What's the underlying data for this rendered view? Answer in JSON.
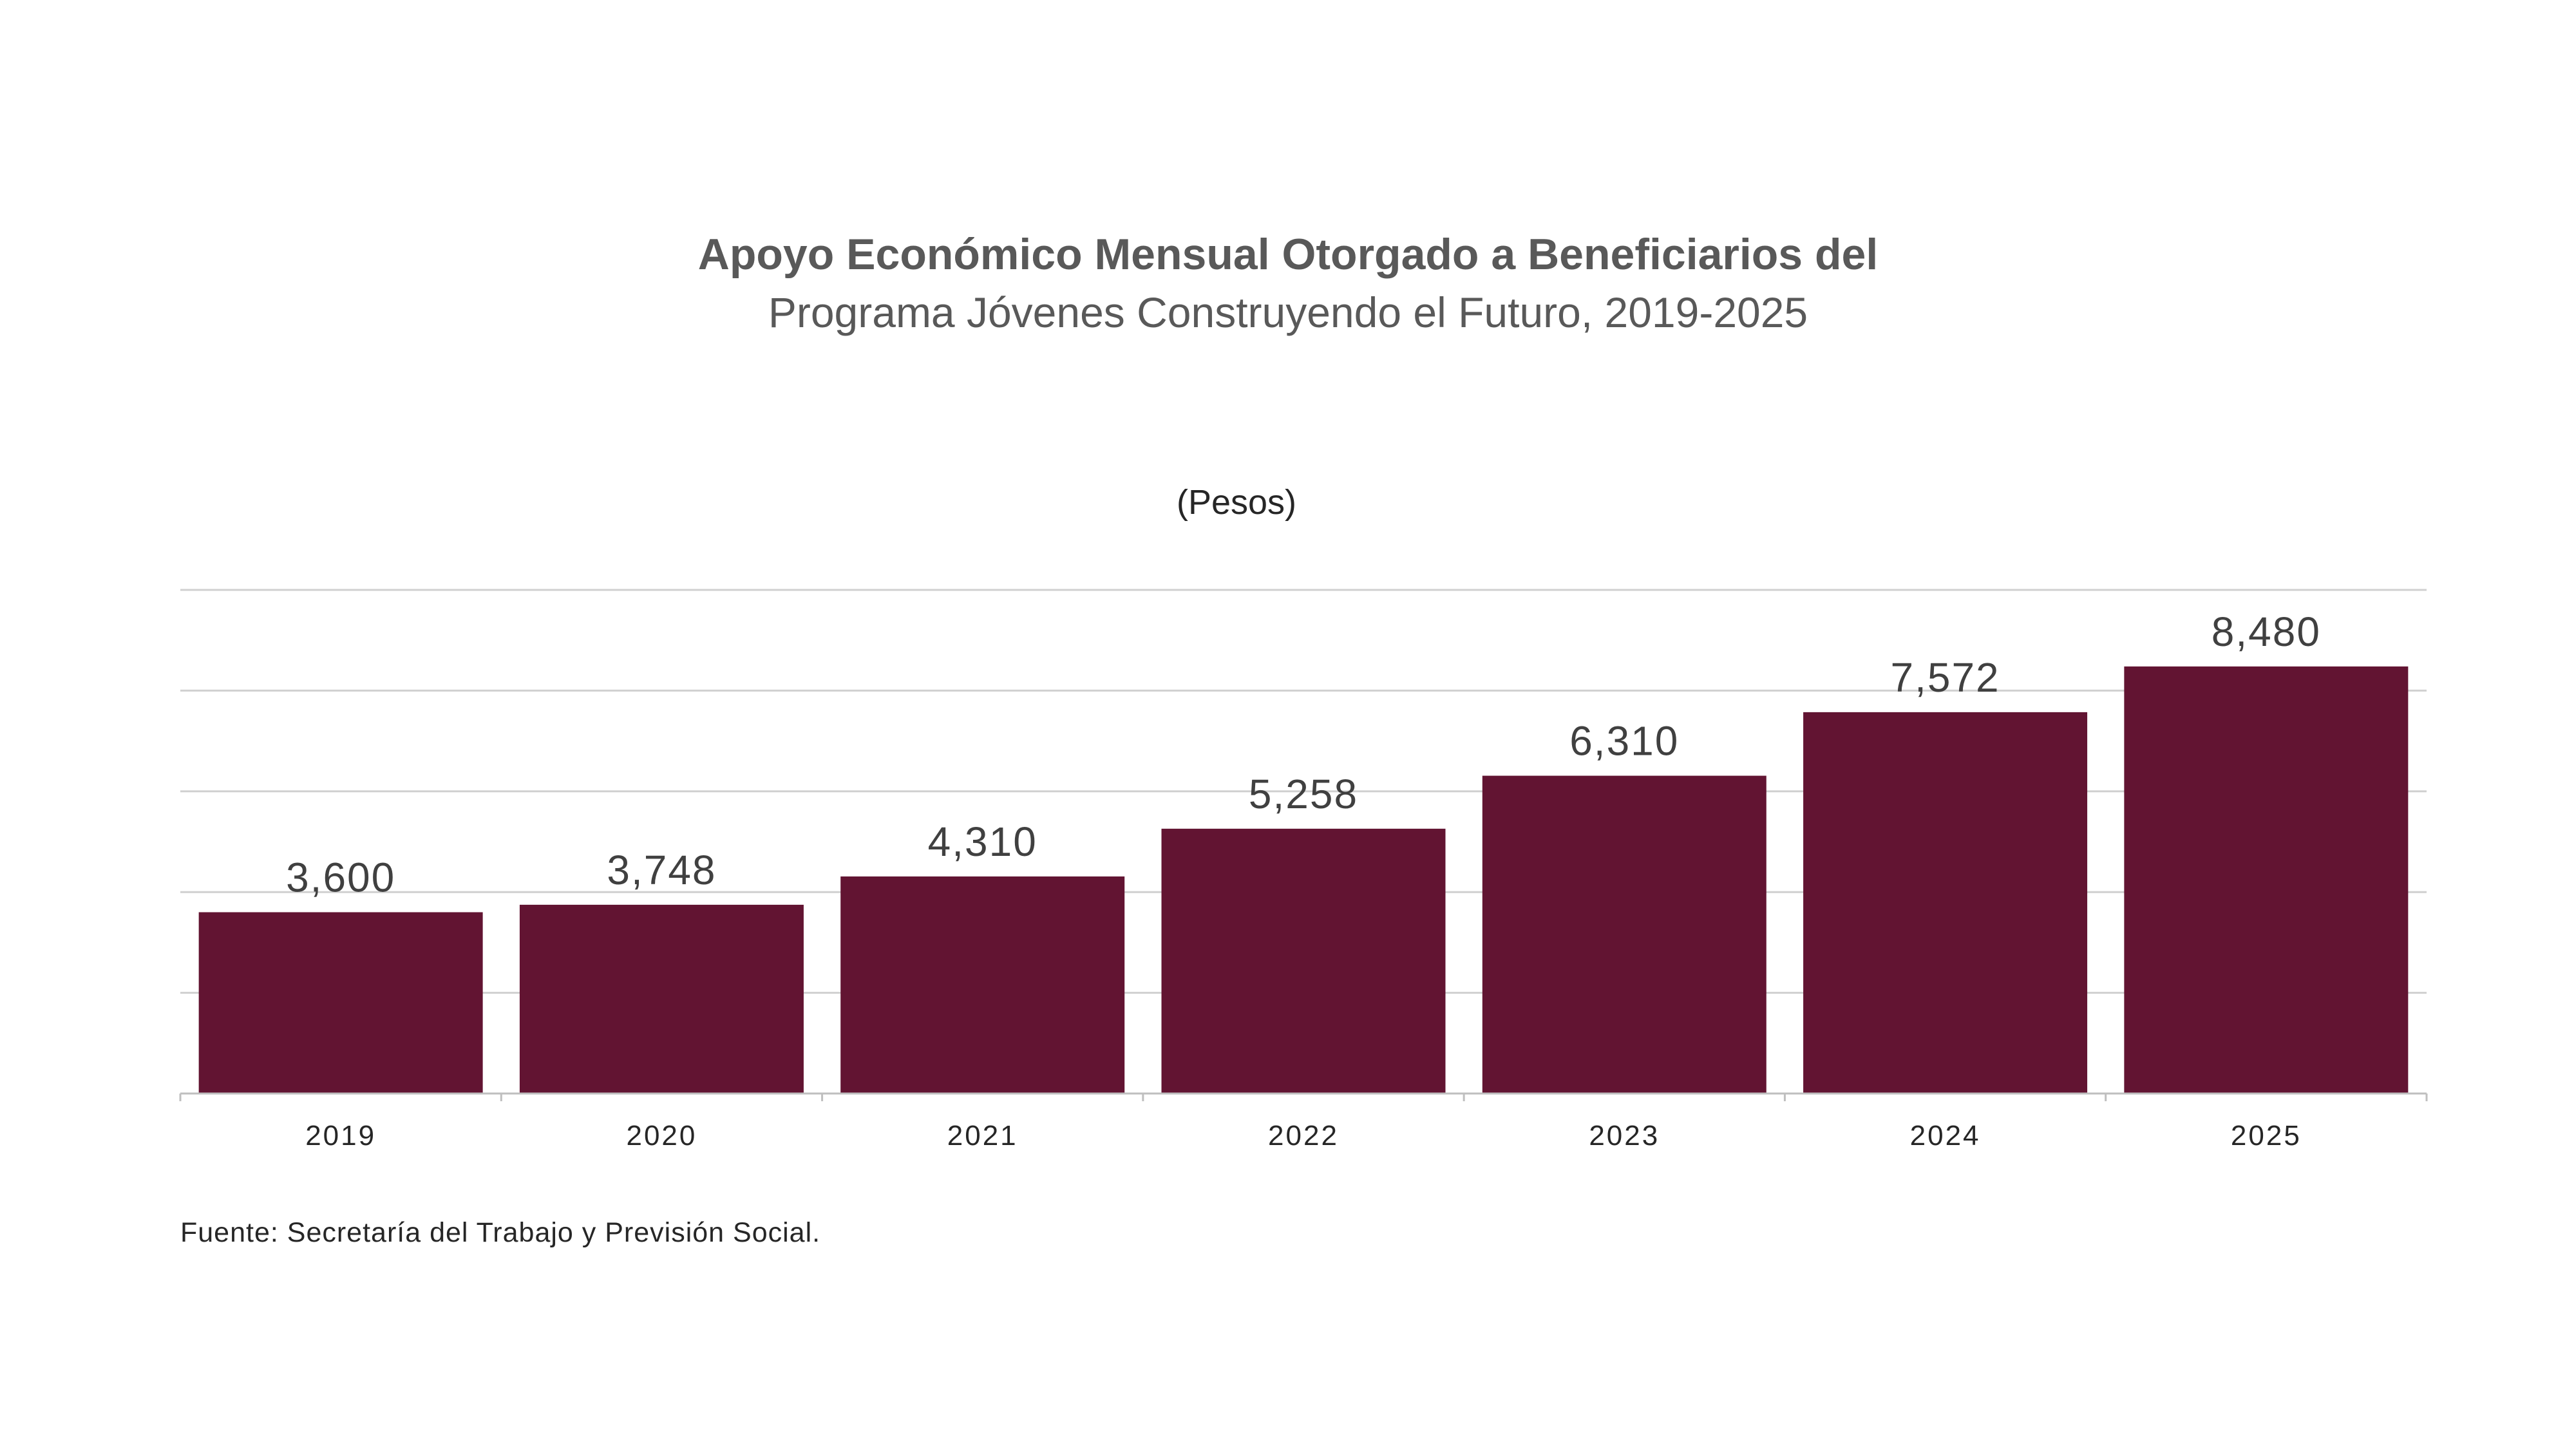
{
  "header": {
    "title": "Apoyo Económico Mensual Otorgado a Beneficiarios del",
    "subtitle": "Programa Jóvenes Construyendo el Futuro, 2019-2025",
    "unit": "(Pesos)"
  },
  "footer": {
    "source": "Fuente: Secretaría del Trabajo y Previsión Social."
  },
  "colors": {
    "bar": "#621432",
    "grid": "#d0d0d0",
    "axis": "#bfbfbf",
    "label": "#404040",
    "tick": "#262626"
  },
  "chart_data": {
    "type": "bar",
    "categories": [
      "2019",
      "2020",
      "2021",
      "2022",
      "2023",
      "2024",
      "2025"
    ],
    "values": [
      3600,
      3748,
      4310,
      5258,
      6310,
      7572,
      8480
    ],
    "data_labels": [
      "3,600",
      "3,748",
      "4,310",
      "5,258",
      "6,310",
      "7,572",
      "8,480"
    ],
    "title": "Apoyo Económico Mensual Otorgado a Beneficiarios del Programa Jóvenes Construyendo el Futuro, 2019-2025",
    "ylabel": "(Pesos)",
    "ylim": [
      0,
      10000
    ],
    "y_gridlines": [
      2000,
      4000,
      6000,
      8000,
      10000
    ],
    "y_tick_labels_shown": false,
    "grid": true,
    "legend": "none"
  }
}
